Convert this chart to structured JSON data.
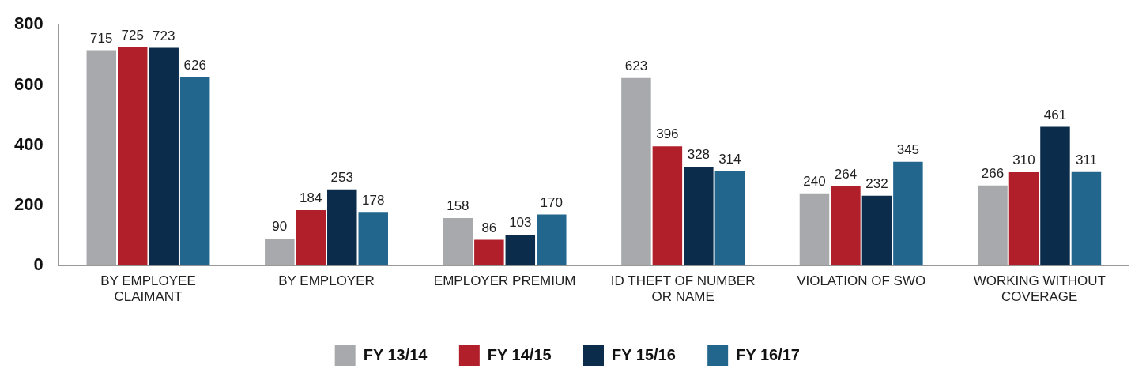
{
  "chart_data": {
    "type": "bar",
    "categories": [
      "BY EMPLOYEE CLAIMANT",
      "BY EMPLOYER",
      "EMPLOYER PREMIUM",
      "ID THEFT OF NUMBER OR NAME",
      "VIOLATION OF SWO",
      "WORKING WITHOUT COVERAGE"
    ],
    "series": [
      {
        "name": "FY 13/14",
        "color": "#a7a9ac",
        "values": [
          715,
          90,
          158,
          623,
          240,
          266
        ]
      },
      {
        "name": "FY 14/15",
        "color": "#b01f2a",
        "values": [
          725,
          184,
          86,
          396,
          264,
          310
        ]
      },
      {
        "name": "FY 15/16",
        "color": "#0b2c4a",
        "values": [
          723,
          253,
          103,
          328,
          232,
          461
        ]
      },
      {
        "name": "FY 16/17",
        "color": "#22668e",
        "values": [
          626,
          178,
          170,
          314,
          345,
          311
        ]
      }
    ],
    "ylim": [
      0,
      800
    ],
    "yticks": [
      0,
      200,
      400,
      600,
      800
    ],
    "grid": false,
    "legend": "bottom",
    "data_labels": true
  }
}
